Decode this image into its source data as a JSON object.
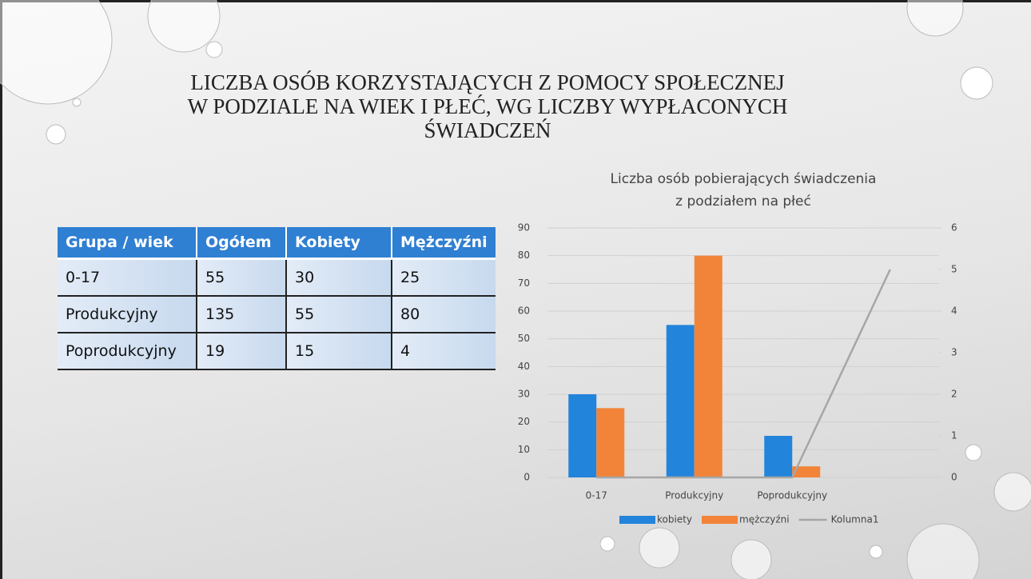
{
  "header": {
    "title_lines": [
      "LICZBA OSÓB KORZYSTAJĄCYCH Z POMOCY SPOŁECZNEJ",
      "W PODZIALE NA WIEK I PŁEĆ, WG LICZBY WYPŁACONYCH",
      "ŚWIADCZEŃ"
    ]
  },
  "table": {
    "columns": [
      "Grupa / wiek",
      "Ogółem",
      "Kobiety",
      "Mężczyźni"
    ],
    "rows": [
      [
        "0-17",
        "55",
        "30",
        "25"
      ],
      [
        "Produkcyjny",
        "135",
        "55",
        "80"
      ],
      [
        "Poprodukcyjny",
        "19",
        "15",
        "4"
      ]
    ]
  },
  "chart_data": {
    "type": "bar",
    "title_lines": [
      "Liczba osób pobierających świadczenia",
      "z podziałem na płeć"
    ],
    "categories": [
      "0-17",
      "Produkcyjny",
      "Poprodukcyjny",
      null
    ],
    "series": [
      {
        "name": "kobiety",
        "color": "#2384dc",
        "values": [
          30,
          55,
          15,
          null
        ]
      },
      {
        "name": "mężczyźni",
        "color": "#f2843a",
        "values": [
          25,
          80,
          4,
          null
        ]
      },
      {
        "name": "Kolumna1",
        "color": "#a6a6a6",
        "values": [
          0,
          0,
          0,
          5
        ],
        "axis": "y2",
        "type": "line"
      }
    ],
    "ylim": [
      0,
      90
    ],
    "yticks": [
      0,
      10,
      20,
      30,
      40,
      50,
      60,
      70,
      80,
      90
    ],
    "y2lim": [
      0,
      6
    ],
    "y2ticks": [
      0,
      1,
      2,
      3,
      4,
      5,
      6
    ],
    "grid": true,
    "legend": "bottom"
  }
}
